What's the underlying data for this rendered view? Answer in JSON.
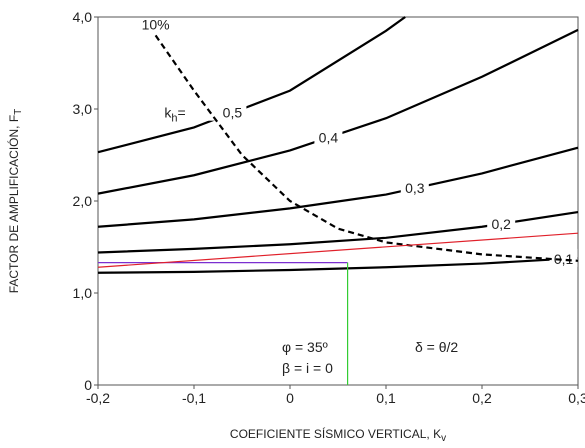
{
  "chart_data": {
    "type": "line",
    "xlabel": "COEFICIENTE SÍSMICO VERTICAL, K",
    "xlabel_sub": "v",
    "ylabel": "FACTOR DE AMPLIFICACIÓN, F",
    "ylabel_sub": "T",
    "kh_prefix": "k",
    "kh_sub": "h",
    "kh_eq": "=",
    "annotations": [
      "φ = 35º",
      "β = i = 0",
      "δ = θ/2"
    ],
    "xlim": [
      -0.2,
      0.3
    ],
    "xticks": [
      {
        "value": -0.2,
        "label": "-0,2"
      },
      {
        "value": -0.1,
        "label": "-0,1"
      },
      0,
      {
        "value": 0.1,
        "label": "0,1"
      },
      {
        "value": 0.2,
        "label": "0,2"
      },
      {
        "value": 0.3,
        "label": "0,3"
      }
    ],
    "ylim": [
      0,
      4
    ],
    "yticks": [
      0,
      {
        "value": 1,
        "label": "1,0"
      },
      {
        "value": 2,
        "label": "2,0"
      },
      {
        "value": 3,
        "label": "3,0"
      },
      {
        "value": 4,
        "label": "4,0"
      }
    ],
    "series": [
      {
        "name": "0,5",
        "color": "#000000",
        "x": [
          -0.2,
          -0.1,
          0,
          0.1,
          0.12
        ],
        "values": [
          2.53,
          2.8,
          3.2,
          3.85,
          4.0
        ]
      },
      {
        "name": "0,4",
        "color": "#000000",
        "x": [
          -0.2,
          -0.1,
          0,
          0.1,
          0.2,
          0.3
        ],
        "values": [
          2.08,
          2.28,
          2.55,
          2.9,
          3.35,
          3.86
        ]
      },
      {
        "name": "0,3",
        "color": "#000000",
        "x": [
          -0.2,
          -0.1,
          0,
          0.1,
          0.2,
          0.3
        ],
        "values": [
          1.72,
          1.8,
          1.92,
          2.07,
          2.3,
          2.58
        ]
      },
      {
        "name": "0,2",
        "color": "#000000",
        "x": [
          -0.2,
          -0.1,
          0,
          0.1,
          0.2,
          0.3
        ],
        "values": [
          1.44,
          1.48,
          1.53,
          1.6,
          1.72,
          1.88
        ]
      },
      {
        "name": "0,1",
        "color": "#000000",
        "x": [
          -0.2,
          -0.1,
          0,
          0.1,
          0.2,
          0.3
        ],
        "values": [
          1.22,
          1.23,
          1.25,
          1.28,
          1.32,
          1.38
        ]
      },
      {
        "name": "10%",
        "color": "#000000",
        "dashed": true,
        "x": [
          -0.14,
          -0.1,
          -0.05,
          0,
          0.05,
          0.1,
          0.2,
          0.3
        ],
        "values": [
          3.8,
          3.2,
          2.5,
          2.0,
          1.7,
          1.55,
          1.42,
          1.35
        ]
      },
      {
        "color": "#7b2fd0",
        "x": [
          -0.2,
          0.06
        ],
        "values": [
          1.33,
          1.33
        ]
      },
      {
        "color": "#e0202a",
        "x": [
          -0.2,
          0.3
        ],
        "values": [
          1.28,
          1.65
        ]
      },
      {
        "color": "#33cc33",
        "x": [
          0.06,
          0.06
        ],
        "values": [
          0,
          1.33
        ]
      }
    ]
  }
}
